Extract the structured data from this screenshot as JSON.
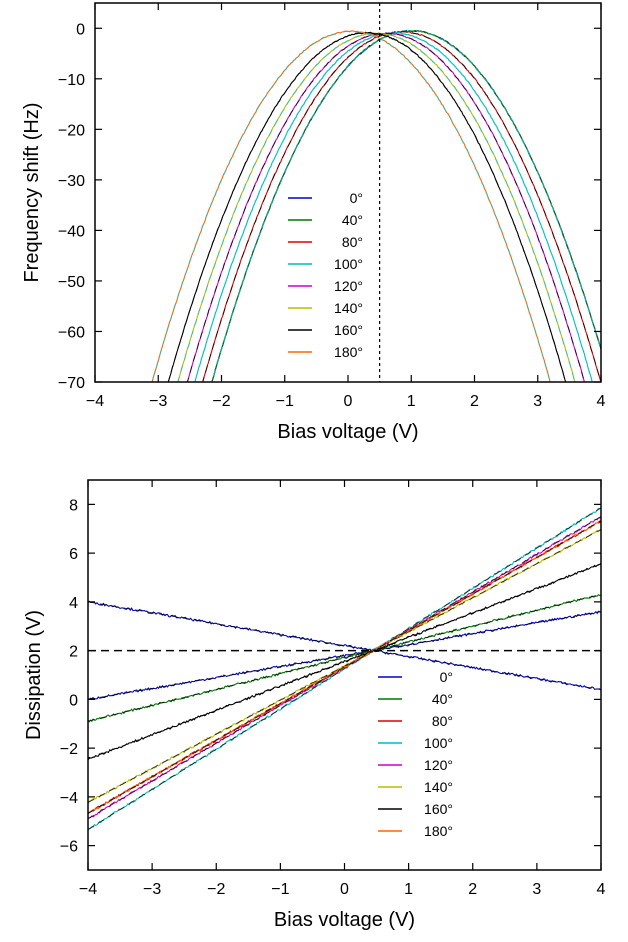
{
  "chart_data": [
    {
      "type": "line",
      "id": "frequency",
      "xlabel": "Bias voltage (V)",
      "ylabel": "Frequency shift (Hz)",
      "xlim": [
        -4,
        4
      ],
      "ylim": [
        -70,
        5
      ],
      "xticks": [
        -4,
        -3,
        -2,
        -1,
        0,
        1,
        2,
        3,
        4
      ],
      "yticks": [
        0,
        -10,
        -20,
        -30,
        -40,
        -50,
        -60,
        -70
      ],
      "reference_line": {
        "axis": "x",
        "value": 0.5,
        "style": "dotted"
      },
      "legend_position": "center-left",
      "model": "y = peak - a*(x - vertex)^2",
      "series": [
        {
          "name": "0°",
          "color": "#0000cc",
          "vertex": 1.0,
          "peak": -0.5,
          "a": 7.0
        },
        {
          "name": "40°",
          "color": "#007700",
          "vertex": 1.0,
          "peak": -0.5,
          "a": 7.0
        },
        {
          "name": "80°",
          "color": "#dd0000",
          "vertex": 0.85,
          "peak": -0.7,
          "a": 7.0
        },
        {
          "name": "100°",
          "color": "#00bbbb",
          "vertex": 0.72,
          "peak": -0.9,
          "a": 7.0
        },
        {
          "name": "120°",
          "color": "#cc00cc",
          "vertex": 0.6,
          "peak": -1.0,
          "a": 7.0
        },
        {
          "name": "140°",
          "color": "#bbbb00",
          "vertex": 0.45,
          "peak": -1.0,
          "a": 7.0
        },
        {
          "name": "160°",
          "color": "#000000",
          "vertex": 0.3,
          "peak": -0.9,
          "a": 7.0
        },
        {
          "name": "180°",
          "color": "#ff6600",
          "vertex": 0.05,
          "peak": -0.6,
          "a": 7.0
        }
      ]
    },
    {
      "type": "line",
      "id": "dissipation",
      "xlabel": "Bias voltage (V)",
      "ylabel": "Dissipation (V)",
      "xlim": [
        -4,
        4
      ],
      "ylim": [
        -7,
        9
      ],
      "xticks": [
        -4,
        -3,
        -2,
        -1,
        0,
        1,
        2,
        3,
        4
      ],
      "yticks": [
        8,
        6,
        4,
        2,
        0,
        -2,
        -4,
        -6
      ],
      "reference_line": {
        "axis": "y",
        "value": 2,
        "style": "dashed"
      },
      "legend_position": "bottom-right",
      "model": "y = y_at_pivot + slope*(x - pivot)",
      "pivot": 0.45,
      "y_at_pivot": 2.0,
      "series": [
        {
          "name": "0°",
          "color": "#0000cc",
          "slope": -0.45,
          "second_slope": 0.45
        },
        {
          "name": "40°",
          "color": "#007700",
          "slope": 0.65
        },
        {
          "name": "80°",
          "color": "#dd0000",
          "slope": 1.5
        },
        {
          "name": "100°",
          "color": "#00bbbb",
          "slope": 1.65
        },
        {
          "name": "120°",
          "color": "#cc00cc",
          "slope": 1.55
        },
        {
          "name": "140°",
          "color": "#bbbb00",
          "slope": 1.4
        },
        {
          "name": "160°",
          "color": "#000000",
          "slope": 1.0
        },
        {
          "name": "180°",
          "color": "#ff6600",
          "slope": 1.5
        }
      ]
    }
  ]
}
